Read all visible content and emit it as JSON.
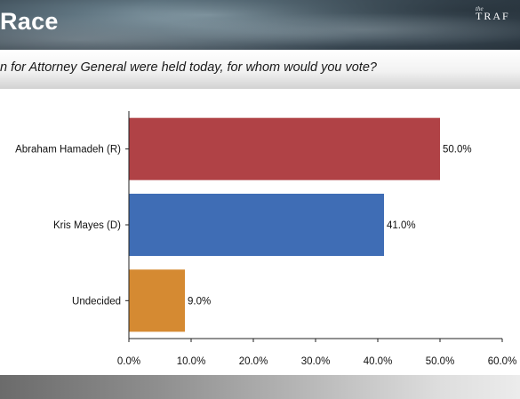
{
  "header": {
    "title": "Race",
    "logo_small": "the",
    "logo_main": "TRAF"
  },
  "question": "n for Attorney General were held today, for whom would you vote?",
  "chart_data": {
    "type": "bar",
    "orientation": "horizontal",
    "categories": [
      "Abraham Hamadeh (R)",
      "Kris Mayes (D)",
      "Undecided"
    ],
    "values": [
      50.0,
      41.0,
      9.0
    ],
    "value_labels": [
      "50.0%",
      "41.0%",
      "9.0%"
    ],
    "colors": [
      "#b04246",
      "#3f6db5",
      "#d58a32"
    ],
    "xlim": [
      0,
      60
    ],
    "xticks": [
      0,
      10,
      20,
      30,
      40,
      50,
      60
    ],
    "xtick_labels": [
      "0.0%",
      "10.0%",
      "20.0%",
      "30.0%",
      "40.0%",
      "50.0%",
      "60.0%"
    ],
    "grid": false,
    "legend": "none"
  }
}
